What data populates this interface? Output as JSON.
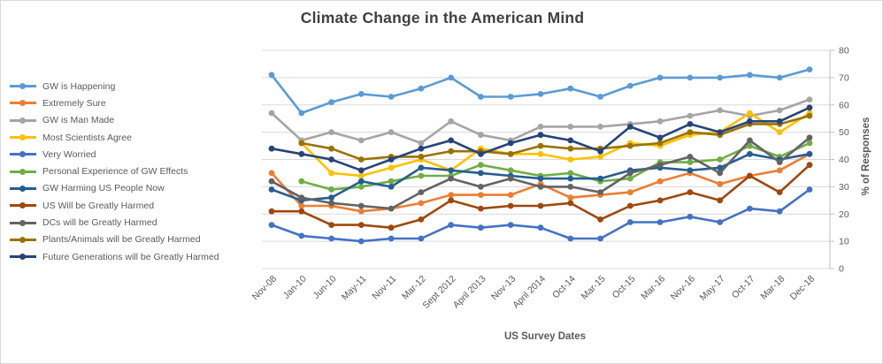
{
  "frame": {
    "background": "#ffffff",
    "border_color": "#d9d9d9"
  },
  "chart_data": {
    "type": "line",
    "title": "Climate Change in the American Mind",
    "xlabel": "US Survey Dates",
    "ylabel": "% of Responses",
    "ylim": [
      0,
      80
    ],
    "ytick_step": 10,
    "grid": "horizontal-only",
    "gridline_color": "#d9d9d9",
    "axis_tick_color": "#bfbfbf",
    "text_color": "#595959",
    "title_color": "#404040",
    "legend_position": "left",
    "marker": "circle",
    "categories": [
      "Nov-08",
      "Jan-10",
      "Jun-10",
      "May-11",
      "Nov-11",
      "Mar-12",
      "Sept 2012",
      "April 2013",
      "Nov-13",
      "April 2014",
      "Oct-14",
      "Mar-15",
      "Oct-15",
      "Mar-16",
      "Nov-16",
      "May-17",
      "Oct-17",
      "Mar-18",
      "Dec-18"
    ],
    "series": [
      {
        "name": "GW is Happening",
        "color": "#5B9BD5",
        "values": [
          71,
          57,
          61,
          64,
          63,
          66,
          70,
          63,
          63,
          64,
          66,
          63,
          67,
          70,
          70,
          70,
          71,
          70,
          73
        ]
      },
      {
        "name": "Extremely Sure",
        "color": "#ED7D31",
        "values": [
          35,
          23,
          23,
          21,
          22,
          24,
          27,
          27,
          27,
          31,
          26,
          27,
          28,
          32,
          35,
          31,
          34,
          36,
          42
        ]
      },
      {
        "name": "GW is Man Made",
        "color": "#A5A5A5",
        "values": [
          57,
          47,
          50,
          47,
          50,
          46,
          54,
          49,
          47,
          52,
          52,
          52,
          53,
          54,
          56,
          58,
          56,
          58,
          62
        ]
      },
      {
        "name": "Most Scientists Agree",
        "color": "#FFC000",
        "values": [
          null,
          46,
          35,
          34,
          37,
          40,
          36,
          44,
          42,
          42,
          40,
          41,
          46,
          45,
          49,
          50,
          57,
          50,
          57
        ]
      },
      {
        "name": "Very Worried",
        "color": "#4472C4",
        "values": [
          16,
          12,
          11,
          10,
          11,
          11,
          16,
          15,
          16,
          15,
          11,
          11,
          17,
          17,
          19,
          17,
          22,
          21,
          29
        ]
      },
      {
        "name": "Personal Experience of GW Effects",
        "color": "#70AD47",
        "values": [
          null,
          32,
          29,
          30,
          32,
          34,
          34,
          38,
          36,
          34,
          35,
          32,
          33,
          39,
          39,
          40,
          45,
          41,
          46
        ]
      },
      {
        "name": "GW Harming US People Now",
        "color": "#255E91",
        "values": [
          29,
          25,
          26,
          32,
          30,
          37,
          36,
          35,
          34,
          33,
          33,
          33,
          36,
          37,
          36,
          37,
          42,
          40,
          42
        ]
      },
      {
        "name": "US Will be Greatly Harmed",
        "color": "#9E480E",
        "values": [
          21,
          21,
          16,
          16,
          15,
          18,
          25,
          22,
          23,
          23,
          24,
          18,
          23,
          25,
          28,
          25,
          34,
          28,
          38
        ]
      },
      {
        "name": "DCs will be Greatly Harmed",
        "color": "#636363",
        "values": [
          32,
          26,
          24,
          23,
          22,
          28,
          33,
          30,
          33,
          30,
          30,
          28,
          35,
          38,
          41,
          35,
          47,
          39,
          48
        ]
      },
      {
        "name": "Plants/Animals will be Greatly Harmed",
        "color": "#997300",
        "values": [
          null,
          46,
          44,
          40,
          41,
          41,
          43,
          43,
          42,
          45,
          44,
          44,
          45,
          46,
          50,
          49,
          53,
          53,
          56
        ]
      },
      {
        "name": "Future Generations will be Greatly Harmed",
        "color": "#264478",
        "values": [
          44,
          42,
          40,
          36,
          40,
          44,
          47,
          42,
          46,
          49,
          47,
          43,
          52,
          48,
          53,
          50,
          54,
          54,
          59
        ]
      }
    ]
  }
}
